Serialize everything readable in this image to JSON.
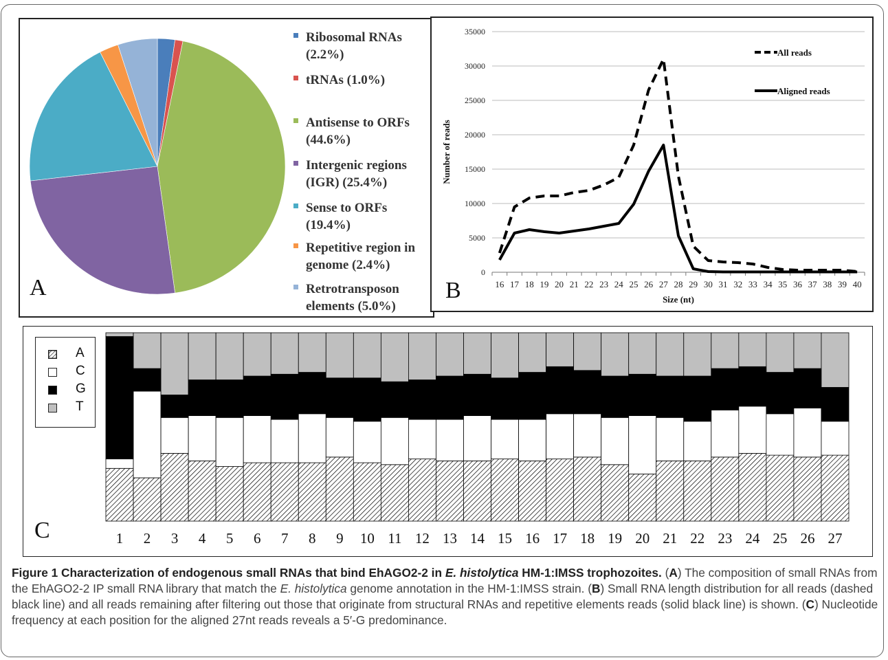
{
  "panels": {
    "a_letter": "A",
    "b_letter": "B",
    "c_letter": "C"
  },
  "colors": {
    "ribosomal": "#4a7ebb",
    "trna": "#d9534f",
    "antisense": "#9bbb59",
    "igr": "#8064a2",
    "sense": "#4bacc6",
    "repetitive": "#f79646",
    "retro": "#95b3d7",
    "nucA": "hatched",
    "nucC": "#ffffff",
    "nucG": "#000000",
    "nucT": "#bfbfbf"
  },
  "chart_data": [
    {
      "type": "pie",
      "slices": [
        {
          "label": "Ribosomal RNAs\n(2.2%)",
          "value": 2.2,
          "color": "#4a7ebb"
        },
        {
          "label": "tRNAs (1.0%)",
          "value": 1.0,
          "color": "#d9534f"
        },
        {
          "label": "Antisense to ORFs\n(44.6%)",
          "value": 44.6,
          "color": "#9bbb59"
        },
        {
          "label": "Intergenic regions\n(IGR) (25.4%)",
          "value": 25.4,
          "color": "#8064a2"
        },
        {
          "label": "Sense to ORFs\n(19.4%)",
          "value": 19.4,
          "color": "#4bacc6"
        },
        {
          "label": "Repetitive region in\ngenome (2.4%)",
          "value": 2.4,
          "color": "#f79646"
        },
        {
          "label": "Retrotransposon\nelements (5.0%)",
          "value": 5.0,
          "color": "#95b3d7"
        }
      ]
    },
    {
      "type": "line",
      "x": [
        16,
        17,
        18,
        19,
        20,
        21,
        22,
        23,
        24,
        25,
        26,
        27,
        28,
        29,
        30,
        31,
        32,
        33,
        34,
        35,
        36,
        37,
        38,
        39,
        40
      ],
      "series": [
        {
          "name": "All reads",
          "style": "dashed",
          "values": [
            2800,
            9500,
            10800,
            11100,
            11100,
            11600,
            11900,
            12700,
            13800,
            18500,
            26500,
            31000,
            14000,
            3800,
            1700,
            1500,
            1400,
            1200,
            700,
            400,
            300,
            300,
            300,
            300,
            100
          ]
        },
        {
          "name": "Aligned reads",
          "style": "solid",
          "values": [
            1800,
            5700,
            6200,
            5900,
            5700,
            6000,
            6300,
            6700,
            7100,
            9900,
            14700,
            18500,
            5300,
            500,
            100,
            50,
            50,
            50,
            50,
            50,
            50,
            50,
            50,
            50,
            50
          ]
        }
      ],
      "xlabel": "Size (nt)",
      "ylabel": "Number of reads",
      "ylim": [
        0,
        35000
      ],
      "yticks": [
        0,
        5000,
        10000,
        15000,
        20000,
        25000,
        30000,
        35000
      ],
      "grid": true,
      "legend": "top-right"
    },
    {
      "type": "bar",
      "stacked": true,
      "categories": [
        "1",
        "2",
        "3",
        "4",
        "5",
        "6",
        "7",
        "8",
        "9",
        "10",
        "11",
        "12",
        "13",
        "14",
        "15",
        "16",
        "17",
        "18",
        "19",
        "20",
        "21",
        "22",
        "23",
        "24",
        "25",
        "26",
        "27"
      ],
      "series": [
        {
          "name": "A",
          "values": [
            0.28,
            0.23,
            0.36,
            0.32,
            0.29,
            0.31,
            0.31,
            0.31,
            0.34,
            0.31,
            0.3,
            0.33,
            0.32,
            0.32,
            0.33,
            0.32,
            0.33,
            0.34,
            0.3,
            0.25,
            0.32,
            0.32,
            0.34,
            0.36,
            0.35,
            0.34,
            0.35
          ]
        },
        {
          "name": "C",
          "values": [
            0.05,
            0.46,
            0.19,
            0.24,
            0.26,
            0.25,
            0.23,
            0.26,
            0.21,
            0.22,
            0.25,
            0.21,
            0.22,
            0.24,
            0.21,
            0.22,
            0.24,
            0.23,
            0.25,
            0.31,
            0.23,
            0.21,
            0.25,
            0.25,
            0.22,
            0.26,
            0.18
          ]
        },
        {
          "name": "G",
          "values": [
            0.65,
            0.12,
            0.12,
            0.19,
            0.2,
            0.21,
            0.24,
            0.22,
            0.21,
            0.23,
            0.19,
            0.21,
            0.23,
            0.22,
            0.22,
            0.25,
            0.25,
            0.23,
            0.22,
            0.22,
            0.22,
            0.24,
            0.22,
            0.21,
            0.22,
            0.21,
            0.18
          ]
        },
        {
          "name": "T",
          "values": [
            0.02,
            0.19,
            0.33,
            0.25,
            0.25,
            0.23,
            0.22,
            0.21,
            0.24,
            0.24,
            0.26,
            0.25,
            0.23,
            0.22,
            0.24,
            0.21,
            0.18,
            0.2,
            0.23,
            0.22,
            0.23,
            0.23,
            0.19,
            0.18,
            0.21,
            0.19,
            0.29
          ]
        }
      ],
      "ylim": [
        0,
        1
      ]
    }
  ],
  "caption": {
    "title": "Figure 1 Characterization of endogenous small RNAs that bind EhAGO2-2 in ",
    "title_italic": "E. histolytica",
    "title_end": " HM-1:IMSS trophozoites.",
    "p1a": " (",
    "A": "A",
    "p1b": ") The composition of small RNAs from the EhAGO2-2 IP small RNA library that match the ",
    "ehist": "E. histolytica",
    "p1c": " genome annotation in the HM-1:IMSS strain. (",
    "B": "B",
    "p2": ") Small RNA length distribution for all reads (dashed black line) and all reads remaining after filtering out those that originate from structural RNAs and repetitive elements reads (solid black line) is shown. (",
    "C": "C",
    "p3": ") Nucleotide frequency at each position for the aligned 27nt reads reveals a 5′-G predominance."
  }
}
